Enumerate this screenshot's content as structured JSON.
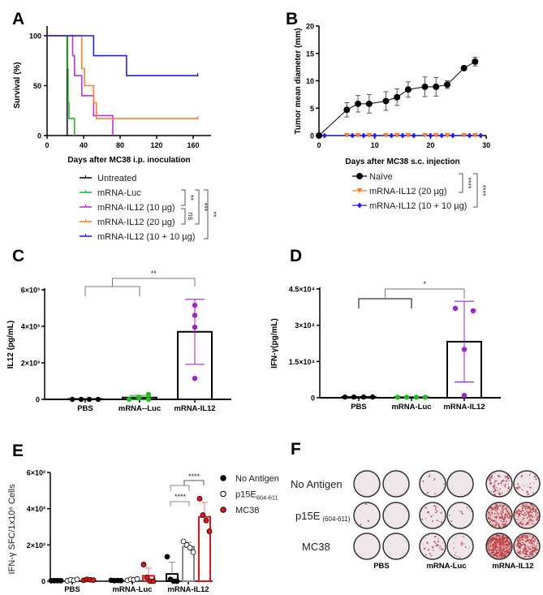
{
  "chart_data": [
    {
      "panel": "A",
      "type": "line",
      "title": "",
      "xlabel": "Days after MC38 i.p. inoculation",
      "ylabel": "Survival (%)",
      "xlim": [
        0,
        180
      ],
      "ylim": [
        0,
        100
      ],
      "xticks": [
        0,
        40,
        80,
        120,
        160
      ],
      "yticks": [
        0,
        50,
        100
      ],
      "series": [
        {
          "name": "Untreated",
          "color": "#111111",
          "steps": [
            [
              0,
              100
            ],
            [
              22,
              0
            ]
          ],
          "end": 22
        },
        {
          "name": "mRNA-Luc",
          "color": "#22bb22",
          "steps": [
            [
              0,
              100
            ],
            [
              22.5,
              67
            ],
            [
              23,
              33
            ],
            [
              24,
              17
            ],
            [
              30,
              0
            ]
          ],
          "end": 30
        },
        {
          "name": "mRNA-IL12 (10 µg)",
          "color": "#b833e6",
          "steps": [
            [
              0,
              100
            ],
            [
              28,
              80
            ],
            [
              30,
              60
            ],
            [
              38,
              40
            ],
            [
              51,
              20
            ],
            [
              72,
              0
            ]
          ],
          "end": 72
        },
        {
          "name": "mRNA-IL12 (20 µg)",
          "color": "#ff7f27",
          "steps": [
            [
              0,
              100
            ],
            [
              38,
              67
            ],
            [
              41,
              50
            ],
            [
              51,
              33
            ],
            [
              54,
              17
            ]
          ],
          "end": 165
        },
        {
          "name": "mRNA-IL12 (10 + 10 µg)",
          "color": "#1f1fff",
          "steps": [
            [
              0,
              100
            ],
            [
              51,
              80
            ],
            [
              87,
              60
            ]
          ],
          "end": 165
        }
      ],
      "significance": [
        {
          "from": 1,
          "to": 2,
          "label": "**"
        },
        {
          "from": 2,
          "to": 3,
          "label": "ns"
        },
        {
          "from": 1,
          "to": 3,
          "label": "***"
        },
        {
          "from": 1,
          "to": 4,
          "label": "**"
        }
      ]
    },
    {
      "panel": "B",
      "type": "line",
      "title": "",
      "xlabel": "Days after MC38 s.c. injection",
      "ylabel": "Tumor mean diameter (mm)",
      "xlim": [
        0,
        30
      ],
      "ylim": [
        0,
        20
      ],
      "xticks": [
        0,
        10,
        20,
        30
      ],
      "yticks": [
        0,
        5,
        10,
        15,
        20
      ],
      "series": [
        {
          "name": "Naïve",
          "color": "#000000",
          "marker": "circle",
          "x": [
            0,
            5,
            7,
            9,
            12,
            14,
            16,
            19,
            21,
            23,
            26,
            28
          ],
          "y": [
            0,
            4.7,
            5.8,
            5.8,
            6.3,
            7.0,
            8.4,
            8.9,
            8.9,
            9.3,
            12.3,
            13.5
          ],
          "err": [
            0,
            1.3,
            1.5,
            1.7,
            1.7,
            1.5,
            1.4,
            1.8,
            1.7,
            0.7,
            0.4,
            0.8
          ]
        },
        {
          "name": "mRNA-IL12 (20 µg)",
          "color": "#ff7f27",
          "marker": "triangle-down",
          "x": [
            5,
            7,
            9,
            12,
            14,
            16,
            19,
            21,
            23,
            26,
            28
          ],
          "y": [
            0,
            0,
            0,
            0,
            0,
            0,
            0,
            0,
            0,
            0,
            0
          ]
        },
        {
          "name": "mRNA-IL12 (10 + 10 µg)",
          "color": "#1f1fff",
          "marker": "diamond",
          "x": [
            1,
            6,
            8,
            10,
            13,
            15,
            17,
            20,
            22,
            24,
            27,
            29
          ],
          "y": [
            0,
            0,
            0,
            0,
            0,
            0,
            0,
            0,
            0,
            0,
            0,
            0
          ]
        }
      ],
      "significance": [
        {
          "from": 0,
          "to": 1,
          "label": "****"
        },
        {
          "from": 0,
          "to": 2,
          "label": "****"
        }
      ]
    },
    {
      "panel": "C",
      "type": "bar",
      "title": "",
      "xlabel": "",
      "ylabel": "IL12 (pg/mL)",
      "ylim": [
        0,
        6000
      ],
      "yticks": [
        0,
        2000,
        4000,
        6000
      ],
      "ytick_labels": [
        "0",
        "2×10³",
        "4×10³",
        "6×10³"
      ],
      "categories": [
        "PBS",
        "mRNA--Luc",
        "mRNA-IL12"
      ],
      "colors": [
        "#000000",
        "#22bb22",
        "#a020e0"
      ],
      "values": [
        20,
        100,
        3700
      ],
      "sd": [
        0,
        120,
        1780
      ],
      "points": [
        [
          0,
          0,
          0,
          0
        ],
        [
          0,
          120,
          0,
          270
        ],
        [
          5150,
          4600,
          3950,
          1150
        ]
      ],
      "significance": {
        "label": "**"
      }
    },
    {
      "panel": "D",
      "type": "bar",
      "title": "",
      "xlabel": "",
      "ylabel": "IFN-γ(pg/mL)",
      "ylim": [
        0,
        45000
      ],
      "yticks": [
        0,
        15000,
        30000,
        45000
      ],
      "ytick_labels": [
        "0",
        "1.5×10⁴",
        "3×10⁴",
        "4.5×10⁴"
      ],
      "categories": [
        "PBS",
        "mRNA-Luc",
        "mRNA-IL12"
      ],
      "colors": [
        "#000000",
        "#22bb22",
        "#a020e0"
      ],
      "values": [
        300,
        200,
        23200
      ],
      "sd": [
        0,
        0,
        16700
      ],
      "points": [
        [
          300,
          300,
          300,
          300
        ],
        [
          200,
          200,
          200,
          200
        ],
        [
          37000,
          36000,
          20000,
          1000
        ]
      ],
      "significance": {
        "label": "*"
      }
    },
    {
      "panel": "E",
      "type": "bar",
      "title": "",
      "xlabel": "",
      "ylabel": "IFN-γ SFC/1x10⁶ Cells",
      "ylim": [
        0,
        600
      ],
      "yticks": [
        0,
        200,
        400,
        600
      ],
      "ytick_labels": [
        "0",
        "2×10²",
        "4×10²",
        "6×10²"
      ],
      "categories": [
        "PBS",
        "mRNA-Luc",
        "mRNA-IL12"
      ],
      "series": [
        {
          "name": "No Antigen",
          "subscript": "",
          "color": "#000000",
          "fill": "#000000",
          "values": [
            3,
            4,
            40
          ],
          "sd": [
            0,
            0,
            65
          ],
          "points": [
            [
              3,
              3,
              3,
              3
            ],
            [
              5,
              3,
              4,
              3
            ],
            [
              135,
              10,
              0,
              0
            ]
          ]
        },
        {
          "name": "p15E",
          "subscript": "604-611",
          "color": "#888888",
          "fill": "#ffffff",
          "values": [
            5,
            8,
            190
          ],
          "sd": [
            3,
            4,
            25
          ],
          "points": [
            [
              2,
              8,
              5,
              10
            ],
            [
              5,
              10,
              8,
              12
            ],
            [
              220,
              200,
              185,
              160
            ]
          ]
        },
        {
          "name": "MC38",
          "subscript": "",
          "color": "#ee1111",
          "fill": "#ee1111",
          "values": [
            8,
            30,
            355
          ],
          "sd": [
            3,
            42,
            80
          ],
          "points": [
            [
              5,
              10,
              8,
              6
            ],
            [
              92,
              20,
              0,
              0
            ],
            [
              455,
              365,
              335,
              275
            ]
          ]
        }
      ],
      "significance": [
        {
          "label": "****"
        },
        {
          "label": "****"
        }
      ]
    }
  ],
  "elispot": {
    "panel": "F",
    "row_labels": [
      {
        "main": "No Antigen",
        "sub": ""
      },
      {
        "main": "p15E",
        "sub": "(604-611)"
      },
      {
        "main": "MC38",
        "sub": ""
      }
    ],
    "group_labels": [
      "PBS",
      "mRNA-Luc",
      "mRNA-IL12"
    ],
    "spot_intensity": [
      [
        0.0,
        0.0,
        0.03,
        0.0,
        0.25,
        0.08
      ],
      [
        0.01,
        0.0,
        0.08,
        0.03,
        0.6,
        0.5
      ],
      [
        0.0,
        0.0,
        0.1,
        0.05,
        1.0,
        0.65
      ]
    ]
  }
}
